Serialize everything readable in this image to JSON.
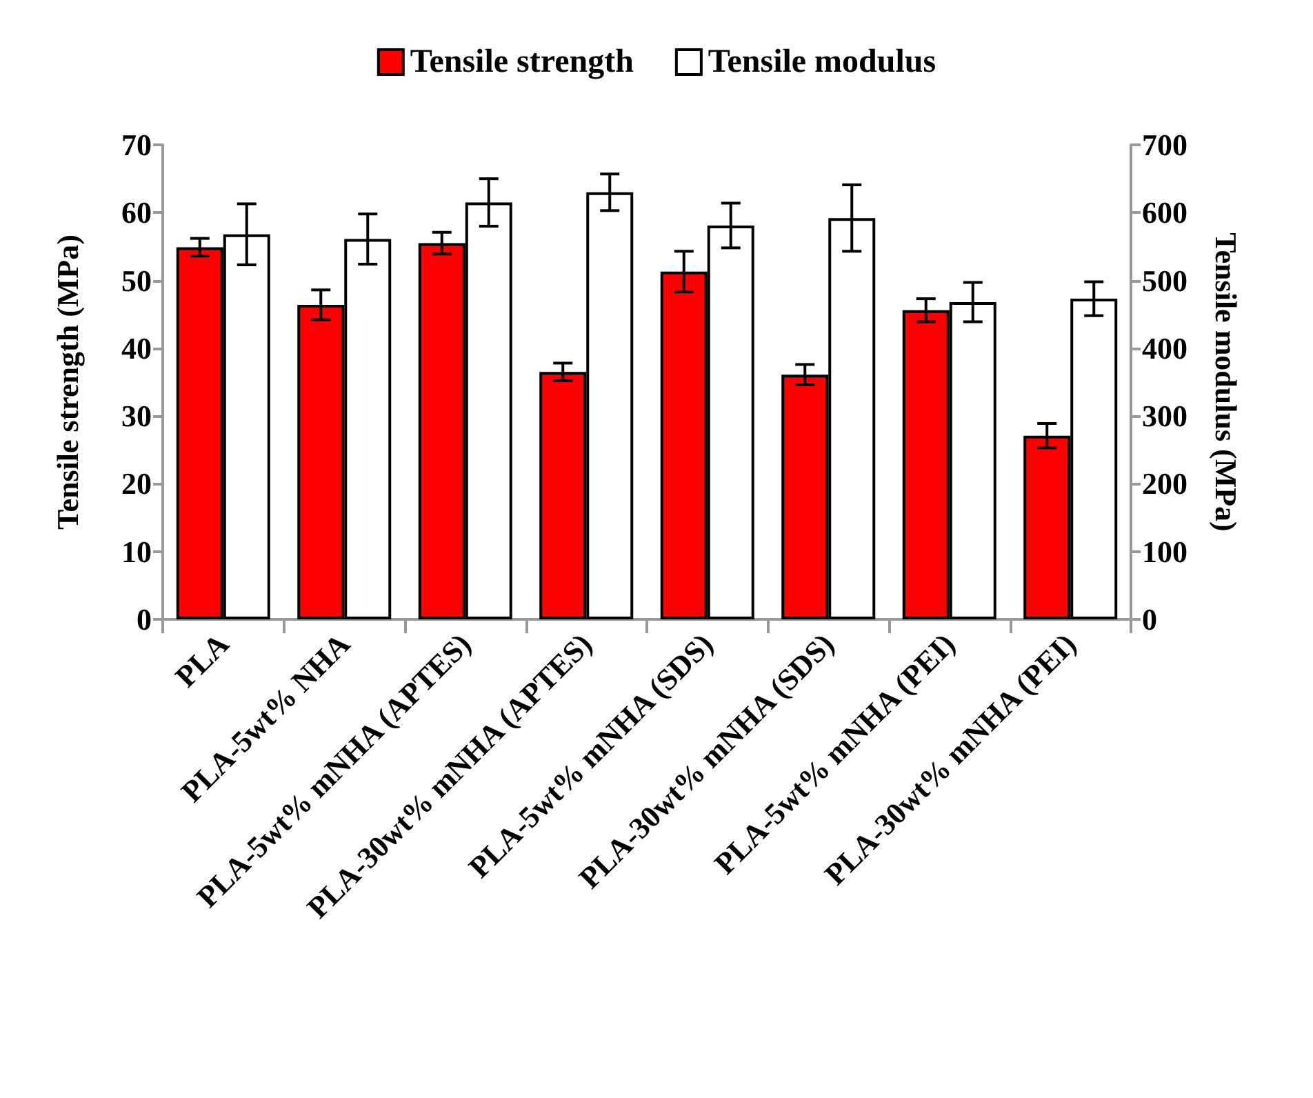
{
  "chart_data": {
    "type": "bar",
    "ylabel": "Tensile strength (MPa)",
    "y2label": "Tensile modulus (MPa)",
    "categories": [
      "PLA",
      "PLA-5wt% NHA",
      "PLA-5wt% mNHA (APTES)",
      "PLA-30wt% mNHA (APTES)",
      "PLA-5wt% mNHA (SDS)",
      "PLA-30wt% mNHA (SDS)",
      "PLA-5wt% mNHA (PEI)",
      "PLA-30wt% mNHA (PEI)"
    ],
    "series": [
      {
        "name": "Tensile strength",
        "color": "#ff0000",
        "values": [
          54.9,
          46.4,
          55.5,
          36.5,
          51.3,
          36.1,
          45.6,
          27.1
        ],
        "errors": [
          1.3,
          2.2,
          1.6,
          1.3,
          3.0,
          1.5,
          1.7,
          1.8
        ]
      },
      {
        "name": "Tensile modulus",
        "color": "#ffffff",
        "axis": "y2",
        "values": [
          568,
          561,
          615,
          630,
          581,
          592,
          468,
          473
        ],
        "errors": [
          45,
          37,
          35,
          27,
          33,
          49,
          29,
          25
        ]
      }
    ],
    "ylim": [
      0,
      70
    ],
    "yticks": [
      0,
      10,
      20,
      30,
      40,
      50,
      60,
      70
    ],
    "y2lim": [
      0,
      700
    ],
    "y2ticks": [
      0,
      100,
      200,
      300,
      400,
      500,
      600,
      700
    ],
    "grid": false,
    "legend": "top"
  }
}
